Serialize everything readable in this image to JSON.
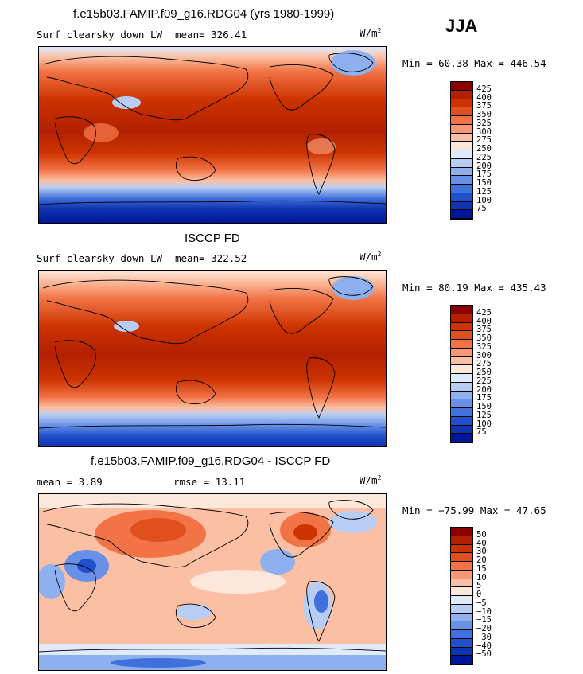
{
  "season": "JJA",
  "units": "W/m",
  "units_exp": "2",
  "panels": [
    {
      "title": "f.e15b03.FAMIP.f09_g16.RDG04 (yrs 1980-1999)",
      "variable": "Surf clearsky down LW",
      "mean_text": "mean= 326.41",
      "minmax_text": "Min =  60.38 Max = 446.54",
      "colorbar": {
        "labels": [
          "425",
          "400",
          "375",
          "350",
          "325",
          "300",
          "275",
          "250",
          "225",
          "200",
          "175",
          "150",
          "125",
          "100",
          "75"
        ],
        "colors": [
          "#8b0000",
          "#b22000",
          "#cc3300",
          "#e0501f",
          "#f27345",
          "#f79774",
          "#fbbfa3",
          "#fde6da",
          "#dfeafb",
          "#b7cdf4",
          "#8fb0ee",
          "#6890e6",
          "#4070dc",
          "#2050cc",
          "#0f34b0",
          "#00179a"
        ]
      }
    },
    {
      "title": "ISCCP FD",
      "variable": "Surf clearsky down LW",
      "mean_text": "mean= 322.52",
      "minmax_text": "Min =  80.19 Max = 435.43",
      "colorbar": {
        "labels": [
          "425",
          "400",
          "375",
          "350",
          "325",
          "300",
          "275",
          "250",
          "225",
          "200",
          "175",
          "150",
          "125",
          "100",
          "75"
        ],
        "colors": [
          "#8b0000",
          "#b22000",
          "#cc3300",
          "#e0501f",
          "#f27345",
          "#f79774",
          "#fbbfa3",
          "#fde6da",
          "#dfeafb",
          "#b7cdf4",
          "#8fb0ee",
          "#6890e6",
          "#4070dc",
          "#2050cc",
          "#0f34b0",
          "#00179a"
        ]
      }
    },
    {
      "title": "f.e15b03.FAMIP.f09_g16.RDG04 - ISCCP FD",
      "mean_text": "mean =   3.89",
      "rmse_text": "rmse =   13.11",
      "minmax_text": "Min = −75.99 Max =  47.65",
      "colorbar": {
        "labels": [
          "50",
          "40",
          "30",
          "20",
          "15",
          "10",
          "5",
          "0",
          "−5",
          "−10",
          "−15",
          "−20",
          "−30",
          "−40",
          "−50"
        ],
        "colors": [
          "#8b0000",
          "#b22000",
          "#cc3300",
          "#e0501f",
          "#f27345",
          "#f79774",
          "#fbbfa3",
          "#fde6da",
          "#dfeafb",
          "#b7cdf4",
          "#8fb0ee",
          "#6890e6",
          "#4070dc",
          "#2050cc",
          "#0f34b0",
          "#00179a"
        ]
      }
    }
  ]
}
